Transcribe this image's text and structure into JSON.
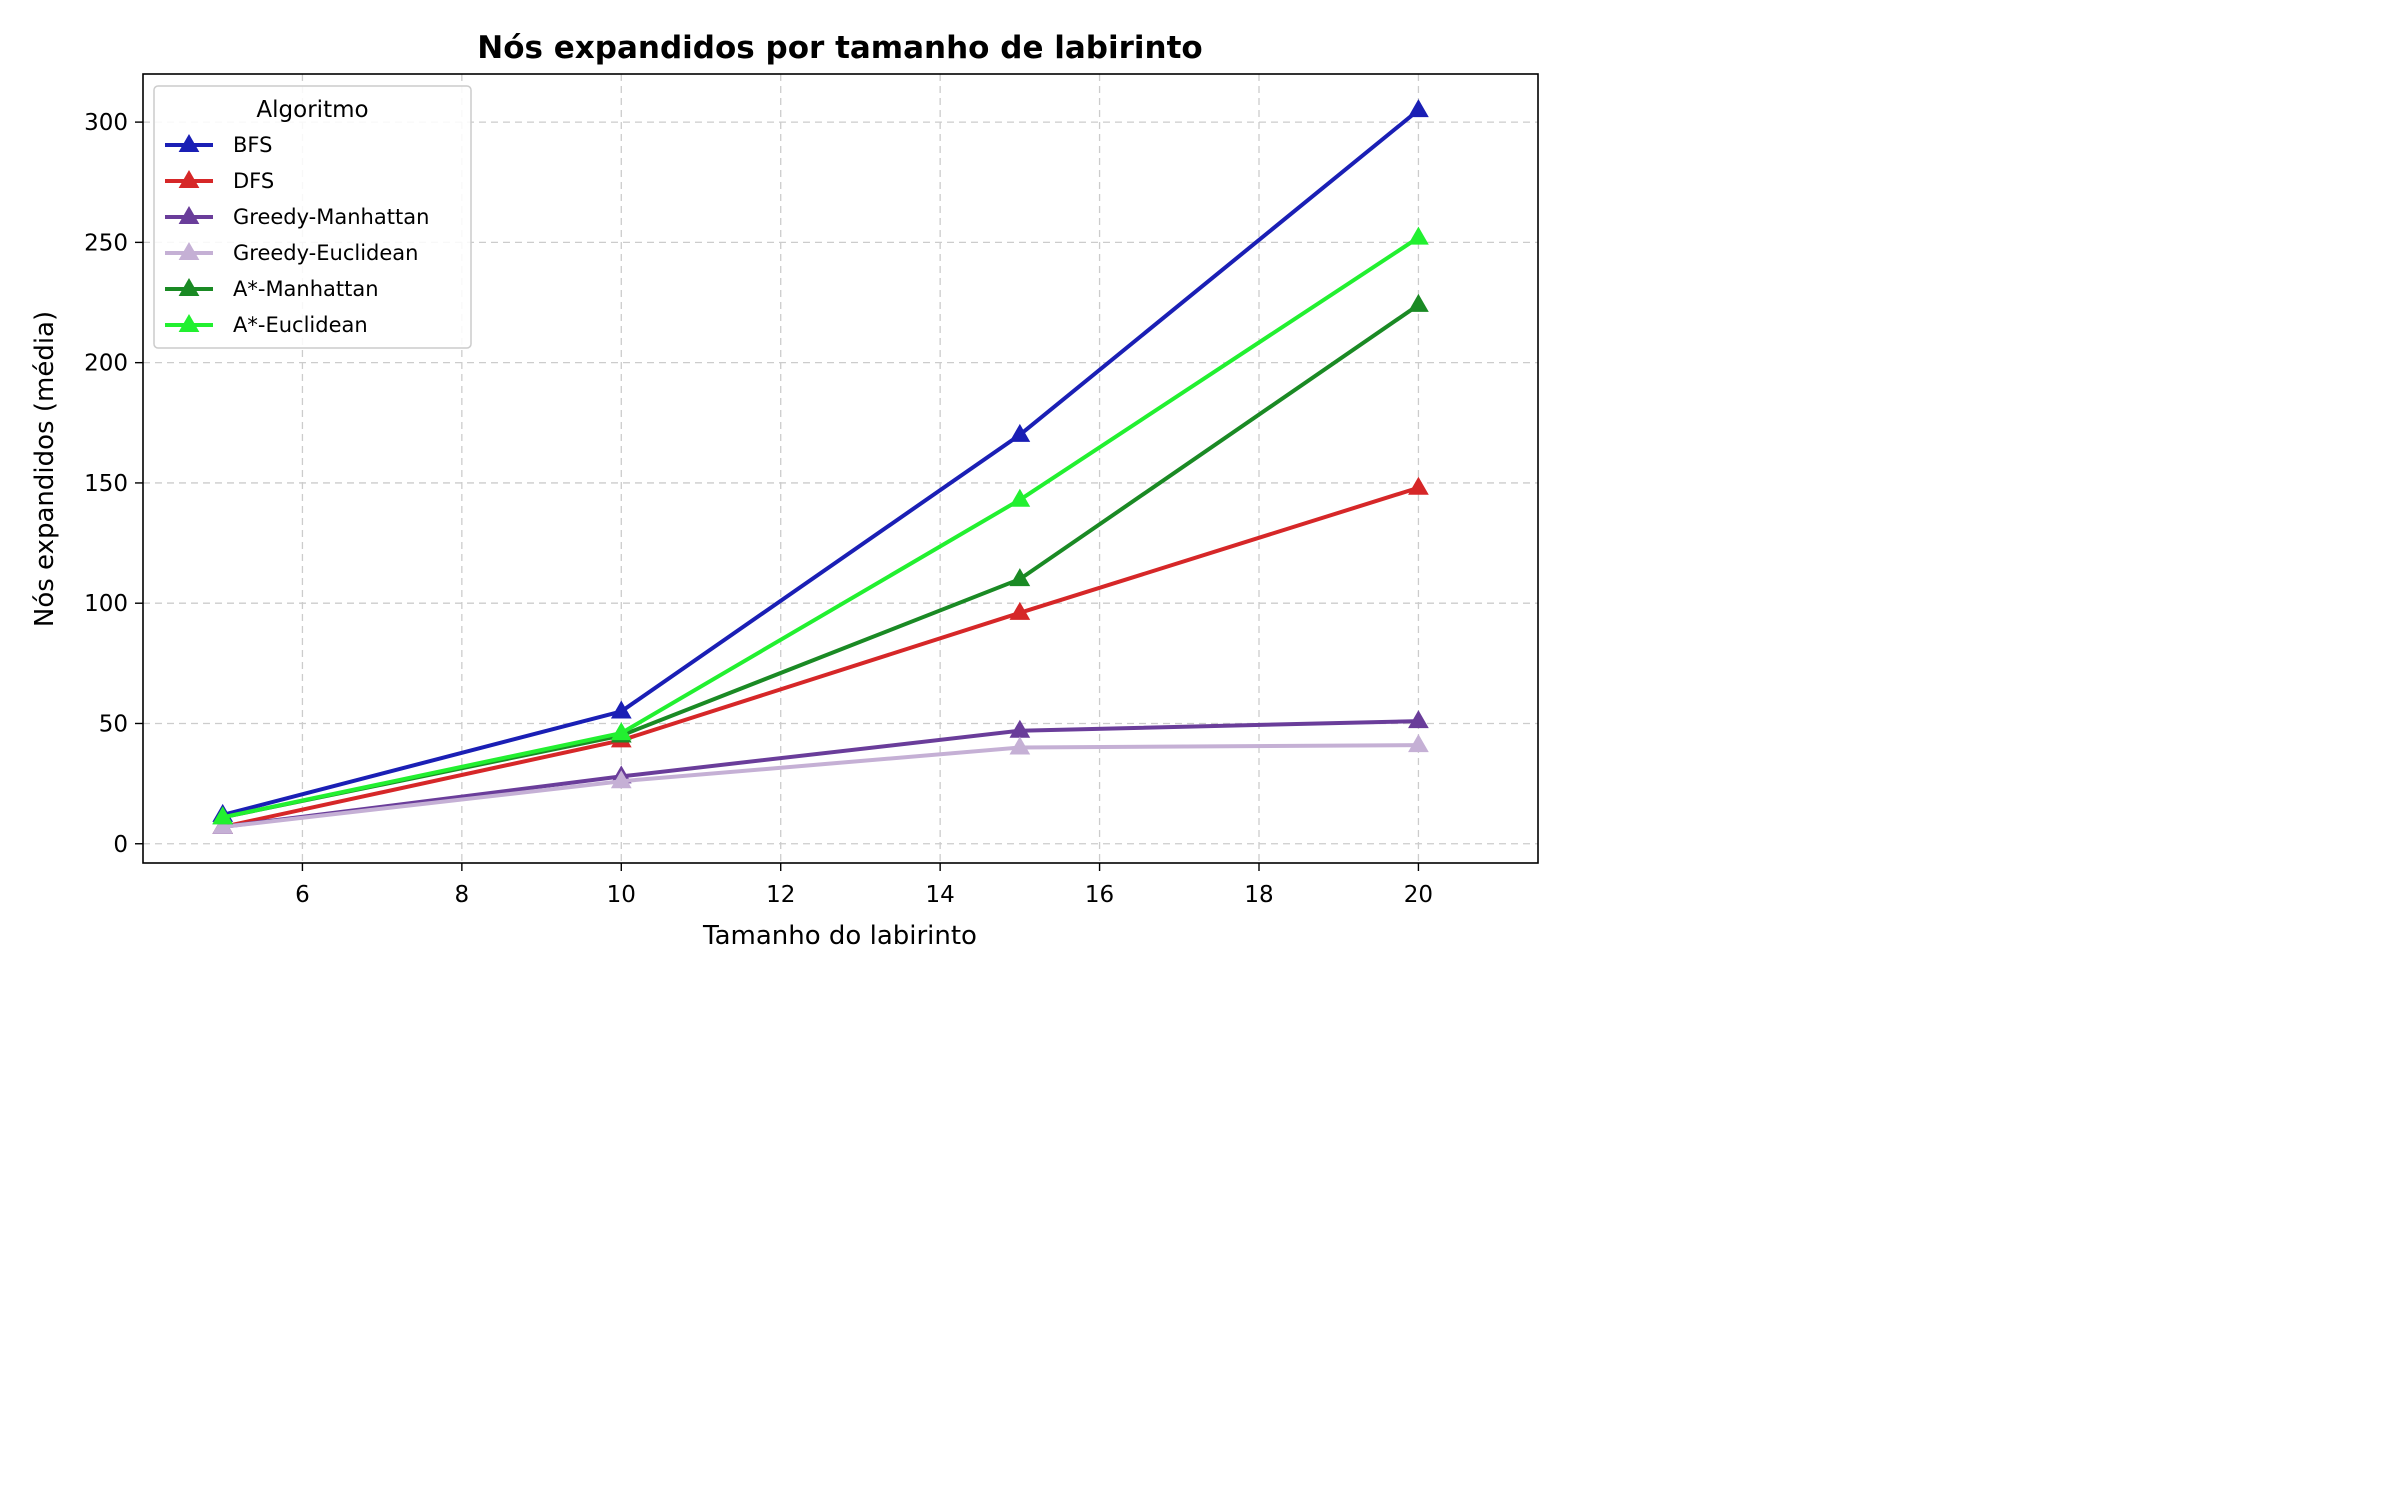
{
  "chart_data": {
    "type": "line",
    "title": "Nós expandidos por tamanho de labirinto",
    "xlabel": "Tamanho do labirinto",
    "ylabel": "Nós expandidos (média)",
    "x": [
      5,
      10,
      15,
      20
    ],
    "xlim": [
      4.0,
      21.5
    ],
    "ylim": [
      -8,
      320
    ],
    "xticks": [
      6,
      8,
      10,
      12,
      14,
      16,
      18,
      20
    ],
    "yticks": [
      0,
      50,
      100,
      150,
      200,
      250,
      300
    ],
    "grid": true,
    "legend": {
      "title": "Algoritmo",
      "placement": "top-left"
    },
    "marker": "triangle",
    "series": [
      {
        "name": "BFS",
        "color": "#1a1fb5",
        "values": [
          12,
          55,
          170,
          305
        ]
      },
      {
        "name": "DFS",
        "color": "#d62728",
        "values": [
          7,
          43,
          96,
          148
        ]
      },
      {
        "name": "Greedy-Manhattan",
        "color": "#6a3d9a",
        "values": [
          7,
          28,
          47,
          51
        ]
      },
      {
        "name": "Greedy-Euclidean",
        "color": "#c5b0d5",
        "values": [
          7,
          26,
          40,
          41
        ]
      },
      {
        "name": "A*-Manhattan",
        "color": "#1a8a24",
        "values": [
          11,
          45,
          110,
          224
        ]
      },
      {
        "name": "A*-Euclidean",
        "color": "#22f030",
        "values": [
          11,
          46,
          143,
          252
        ]
      }
    ]
  }
}
